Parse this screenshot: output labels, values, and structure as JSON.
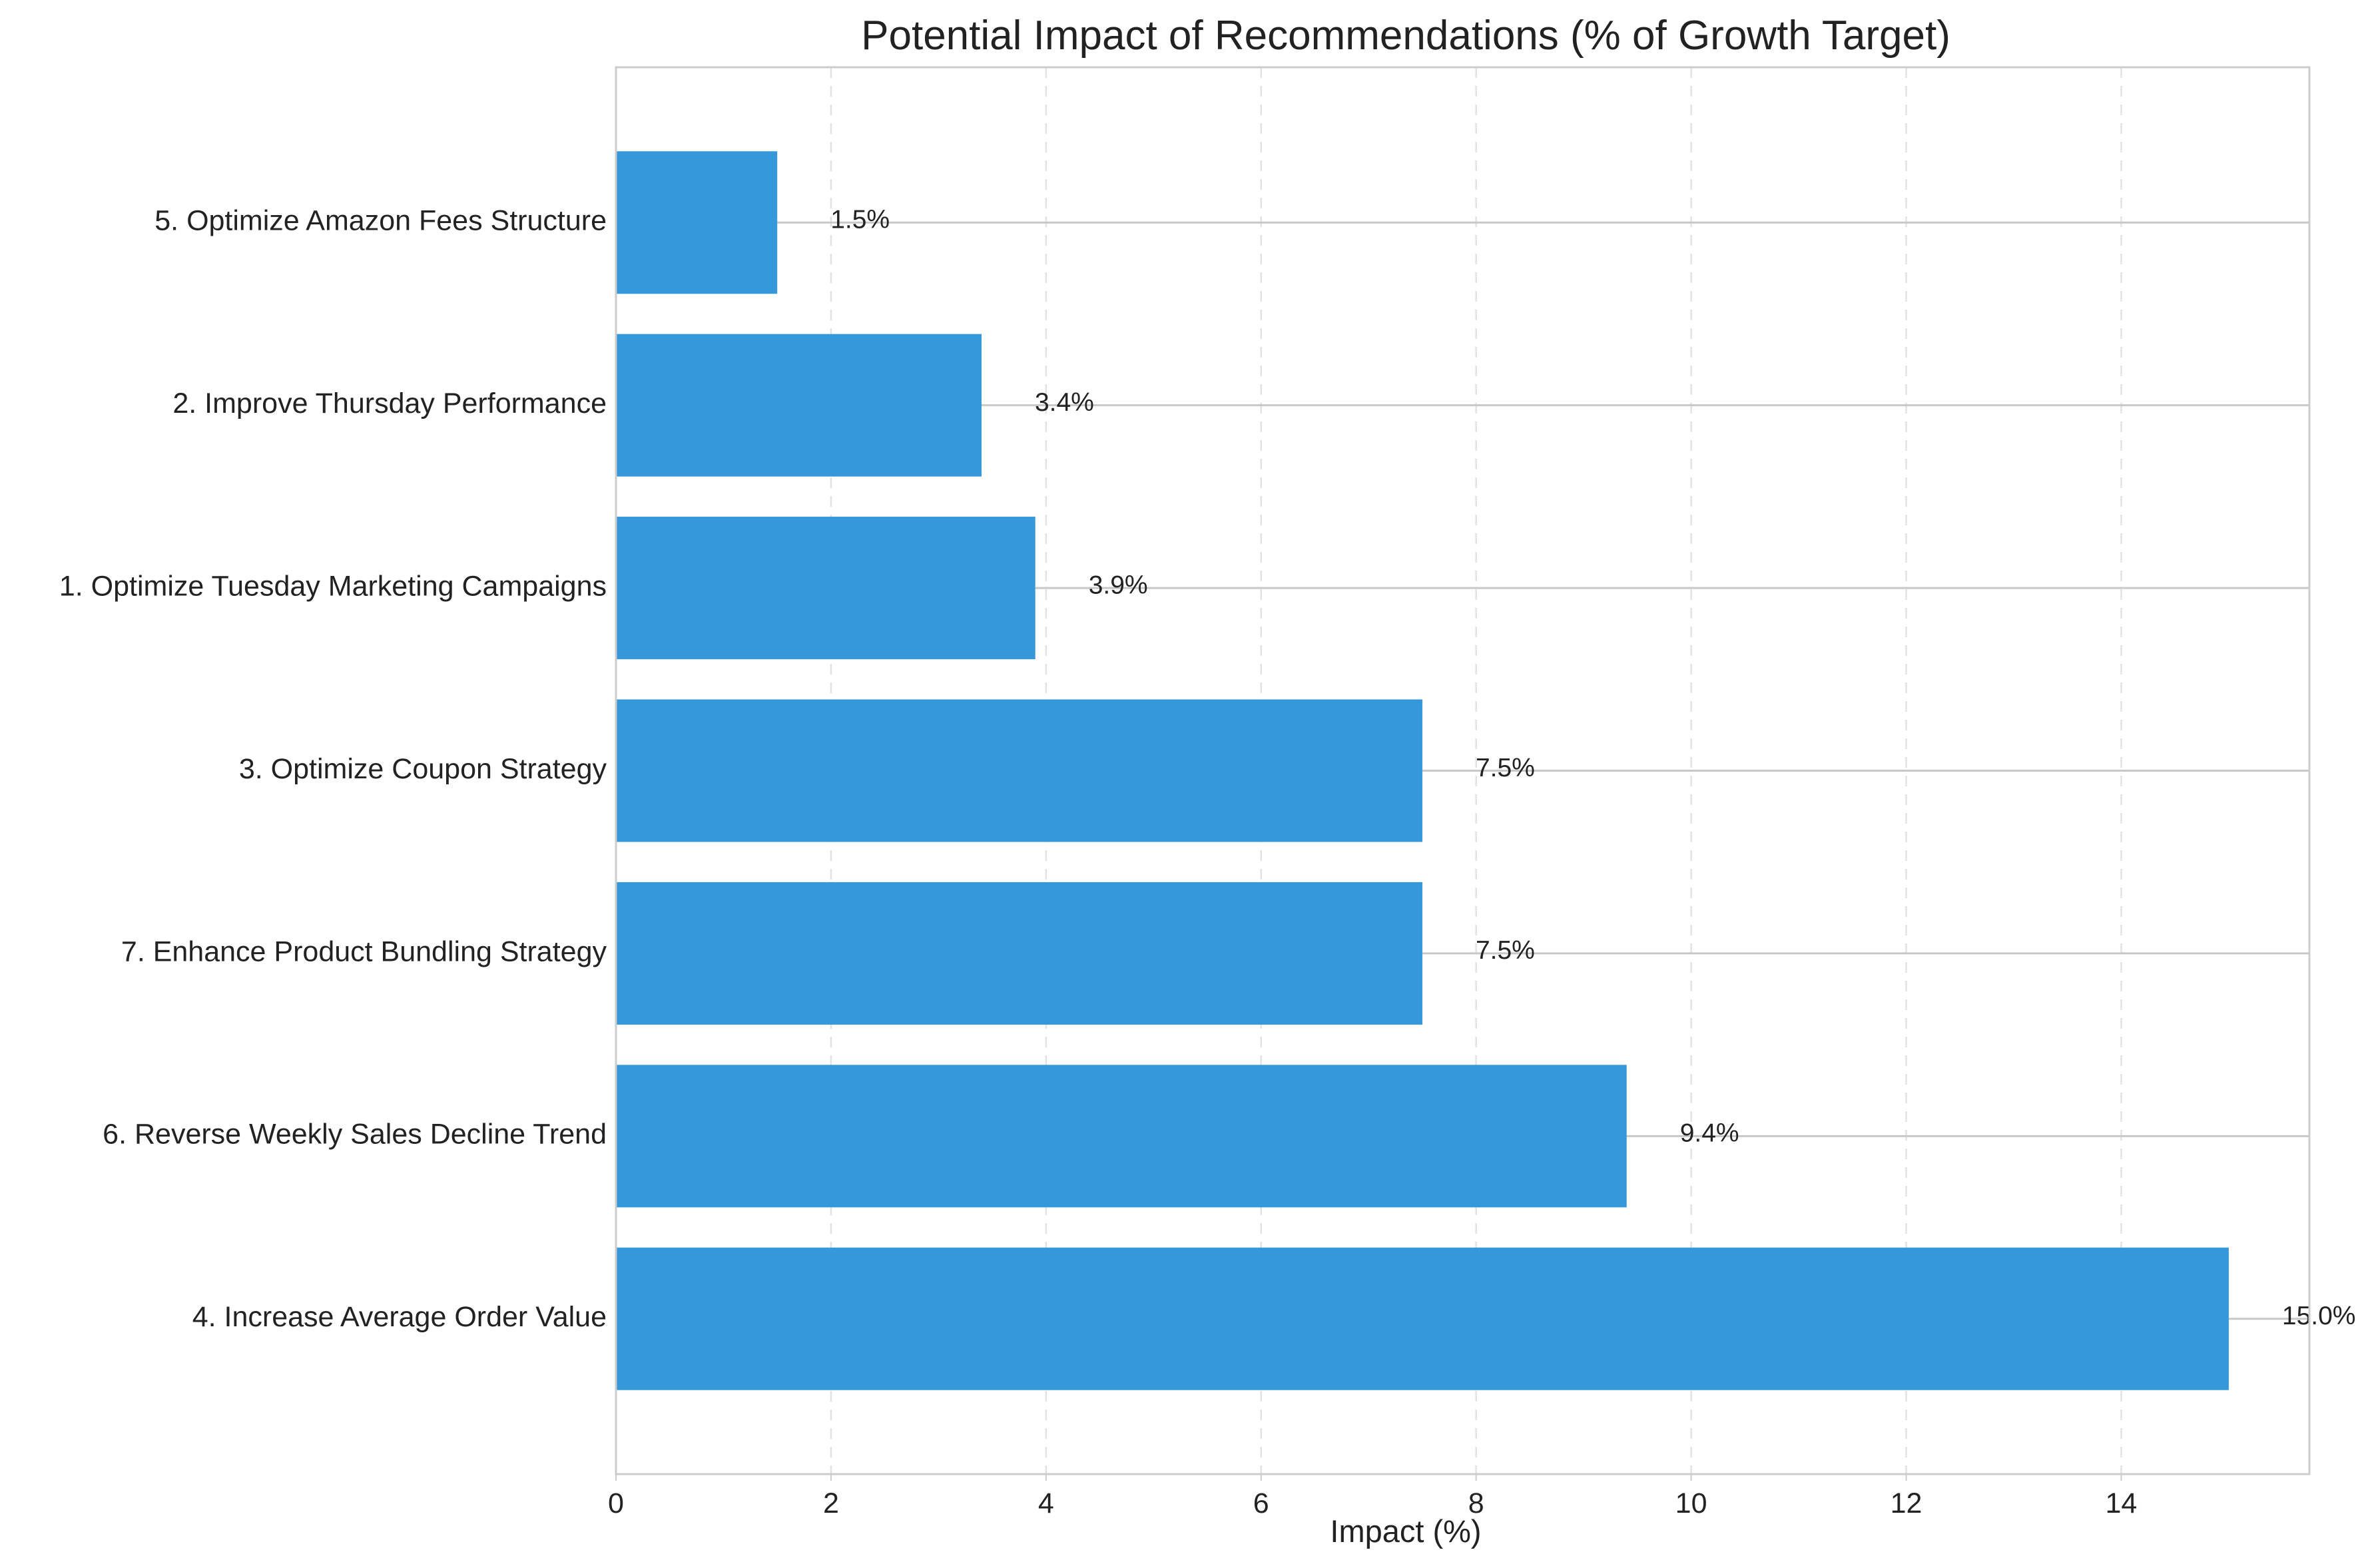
{
  "chart_data": {
    "type": "bar",
    "orientation": "horizontal",
    "title": "Potential Impact of Recommendations (% of Growth Target)",
    "xlabel": "Impact (%)",
    "ylabel": "",
    "xlim": [
      0,
      15.75
    ],
    "xticks": [
      0,
      2,
      4,
      6,
      8,
      10,
      12,
      14
    ],
    "grid": "x-dashed",
    "bar_color": "#3498db",
    "categories": [
      "5. Optimize Amazon Fees Structure",
      "2. Improve Thursday Performance",
      "1. Optimize Tuesday Marketing Campaigns",
      "3. Optimize Coupon Strategy",
      "7. Enhance Product Bundling Strategy",
      "6. Reverse Weekly Sales Decline Trend",
      "4. Increase Average Order Value"
    ],
    "values": [
      1.5,
      3.4,
      3.9,
      7.5,
      7.5,
      9.4,
      15.0
    ],
    "data_labels": [
      "1.5%",
      "3.4%",
      "3.9%",
      "7.5%",
      "7.5%",
      "9.4%",
      "15.0%"
    ]
  }
}
